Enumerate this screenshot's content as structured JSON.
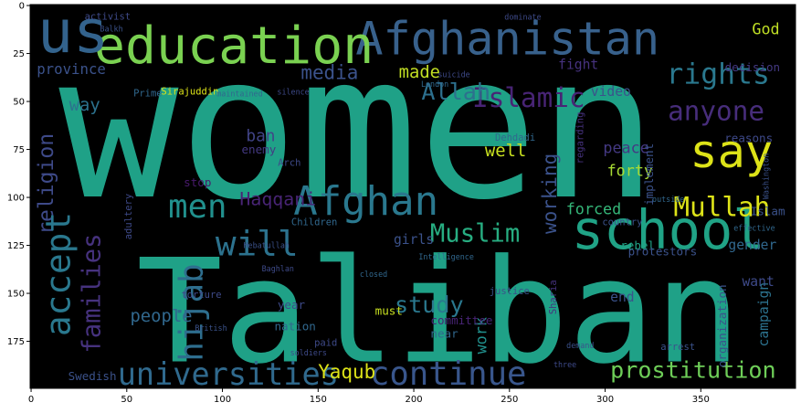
{
  "chart_data": {
    "type": "wordcloud",
    "background": "#000000",
    "xlim": [
      -0.5,
      399.5
    ],
    "ylim": [
      199.5,
      -0.5
    ],
    "xticks": [
      0,
      50,
      100,
      150,
      200,
      250,
      300,
      350
    ],
    "yticks": [
      0,
      25,
      50,
      75,
      100,
      125,
      150,
      175
    ],
    "words": [
      {
        "text": "women",
        "x": 171,
        "y": 64,
        "size": 104,
        "color": "#1fa187"
      },
      {
        "text": "Taliban",
        "x": 213,
        "y": 160,
        "size": 75,
        "color": "#1fa187"
      },
      {
        "text": "Afghanistan",
        "x": 249,
        "y": 17,
        "size": 24,
        "color": "#38618c"
      },
      {
        "text": "education",
        "x": 106,
        "y": 21,
        "size": 27,
        "color": "#7ad151"
      },
      {
        "text": "us",
        "x": 22,
        "y": 14,
        "size": 31,
        "color": "#33638d"
      },
      {
        "text": "rights",
        "x": 359,
        "y": 36,
        "size": 15,
        "color": "#2a788e"
      },
      {
        "text": "say",
        "x": 366,
        "y": 76,
        "size": 24,
        "color": "#dde318"
      },
      {
        "text": "school",
        "x": 333,
        "y": 117,
        "size": 28,
        "color": "#20a386"
      },
      {
        "text": "Islamic",
        "x": 260,
        "y": 48,
        "size": 14,
        "color": "#482475"
      },
      {
        "text": "anyone",
        "x": 358,
        "y": 55,
        "size": 14,
        "color": "#472d7b"
      },
      {
        "text": "Allah",
        "x": 222,
        "y": 45,
        "size": 12,
        "color": "#2d708e"
      },
      {
        "text": "made",
        "x": 203,
        "y": 35,
        "size": 9,
        "color": "#c2df23"
      },
      {
        "text": "media",
        "x": 156,
        "y": 35,
        "size": 10,
        "color": "#3b528b"
      },
      {
        "text": "God",
        "x": 384,
        "y": 12,
        "size": 8,
        "color": "#c0df25"
      },
      {
        "text": "way",
        "x": 28,
        "y": 52,
        "size": 9,
        "color": "#2c728e"
      },
      {
        "text": "province",
        "x": 21,
        "y": 33,
        "size": 7.5,
        "color": "#3b528b"
      },
      {
        "text": "religion",
        "x": 8,
        "y": 93,
        "size": 11,
        "color": "#3e4a89",
        "vertical": true
      },
      {
        "text": "accept",
        "x": 14,
        "y": 140,
        "size": 18,
        "color": "#2a788e",
        "vertical": true
      },
      {
        "text": "families",
        "x": 32,
        "y": 150,
        "size": 13,
        "color": "#46327e",
        "vertical": true
      },
      {
        "text": "men",
        "x": 87,
        "y": 105,
        "size": 17,
        "color": "#21908d"
      },
      {
        "text": "will",
        "x": 118,
        "y": 124,
        "size": 18,
        "color": "#2c728e"
      },
      {
        "text": "Afghan",
        "x": 175,
        "y": 102,
        "size": 21,
        "color": "#2a788e"
      },
      {
        "text": "Muslim",
        "x": 232,
        "y": 119,
        "size": 13,
        "color": "#27ad81"
      },
      {
        "text": "Mullah",
        "x": 361,
        "y": 105,
        "size": 14,
        "color": "#dde318"
      },
      {
        "text": "hijab",
        "x": 84,
        "y": 160,
        "size": 17,
        "color": "#2e6e8e",
        "vertical": true
      },
      {
        "text": "people",
        "x": 68,
        "y": 162,
        "size": 9,
        "color": "#31688e"
      },
      {
        "text": "universities",
        "x": 103,
        "y": 192,
        "size": 16,
        "color": "#306a8e"
      },
      {
        "text": "continue",
        "x": 218,
        "y": 192,
        "size": 17,
        "color": "#39568c"
      },
      {
        "text": "prostitution",
        "x": 346,
        "y": 190,
        "size": 12,
        "color": "#6ece58"
      },
      {
        "text": "Yaqub",
        "x": 165,
        "y": 191,
        "size": 10,
        "color": "#dde318"
      },
      {
        "text": "study",
        "x": 208,
        "y": 156,
        "size": 12,
        "color": "#2a788e"
      },
      {
        "text": "work",
        "x": 235,
        "y": 172,
        "size": 8,
        "color": "#21908d",
        "vertical": true
      },
      {
        "text": "working",
        "x": 271,
        "y": 98,
        "size": 10,
        "color": "#3b528b",
        "vertical": true
      },
      {
        "text": "well",
        "x": 248,
        "y": 76,
        "size": 9,
        "color": "#c8e020"
      },
      {
        "text": "forced",
        "x": 294,
        "y": 106,
        "size": 8,
        "color": "#35b779"
      },
      {
        "text": "forty",
        "x": 313,
        "y": 86,
        "size": 8,
        "color": "#a8db34"
      },
      {
        "text": "peace",
        "x": 311,
        "y": 74,
        "size": 8,
        "color": "#443983"
      },
      {
        "text": "ban",
        "x": 120,
        "y": 68,
        "size": 8.5,
        "color": "#414487"
      },
      {
        "text": "Haqqani",
        "x": 129,
        "y": 101,
        "size": 9.5,
        "color": "#482475"
      },
      {
        "text": "Islam",
        "x": 385,
        "y": 107,
        "size": 6,
        "color": "#3b528b"
      },
      {
        "text": "gender",
        "x": 377,
        "y": 125,
        "size": 7,
        "color": "#31688e"
      },
      {
        "text": "rebel",
        "x": 317,
        "y": 125,
        "size": 6,
        "color": "#20a386"
      },
      {
        "text": "stop",
        "x": 87,
        "y": 92,
        "size": 6,
        "color": "#481a6c"
      },
      {
        "text": "fight",
        "x": 286,
        "y": 31,
        "size": 7,
        "color": "#46327e"
      },
      {
        "text": "video",
        "x": 303,
        "y": 45,
        "size": 7,
        "color": "#3b528b"
      },
      {
        "text": "decision",
        "x": 377,
        "y": 32,
        "size": 6,
        "color": "#443983"
      },
      {
        "text": "Sirajuddin",
        "x": 83,
        "y": 45,
        "size": 5,
        "color": "#dde318"
      },
      {
        "text": "Prime",
        "x": 61,
        "y": 46,
        "size": 5,
        "color": "#31688e"
      },
      {
        "text": "end",
        "x": 309,
        "y": 152,
        "size": 7,
        "color": "#3b528b"
      },
      {
        "text": "committee",
        "x": 225,
        "y": 164,
        "size": 6,
        "color": "#482475"
      },
      {
        "text": "want",
        "x": 380,
        "y": 144,
        "size": 7,
        "color": "#3e4a89"
      },
      {
        "text": "Swedish",
        "x": 32,
        "y": 193,
        "size": 6,
        "color": "#3b528b"
      },
      {
        "text": "nation",
        "x": 138,
        "y": 167,
        "size": 6,
        "color": "#31688e"
      },
      {
        "text": "must",
        "x": 187,
        "y": 159,
        "size": 6,
        "color": "#c8e020"
      },
      {
        "text": "year",
        "x": 136,
        "y": 156,
        "size": 6,
        "color": "#3e4a89"
      },
      {
        "text": "campaign",
        "x": 383,
        "y": 161,
        "size": 7,
        "color": "#2c728e",
        "vertical": true
      },
      {
        "text": "organization",
        "x": 361,
        "y": 167,
        "size": 6,
        "color": "#3b528b",
        "vertical": true
      },
      {
        "text": "implement",
        "x": 323,
        "y": 88,
        "size": 6,
        "color": "#3b528b",
        "vertical": true
      },
      {
        "text": "reasons",
        "x": 375,
        "y": 69,
        "size": 6,
        "color": "#3e4989"
      },
      {
        "text": "enemy",
        "x": 119,
        "y": 75,
        "size": 6,
        "color": "#443983"
      },
      {
        "text": "girls",
        "x": 200,
        "y": 122,
        "size": 7,
        "color": "#3b528b"
      },
      {
        "text": "activist",
        "x": 40,
        "y": 6,
        "size": 5,
        "color": "#3e4a89"
      },
      {
        "text": "London",
        "x": 211,
        "y": 41,
        "size": 4,
        "color": "#31688e"
      },
      {
        "text": "Children",
        "x": 148,
        "y": 113,
        "size": 5,
        "color": "#31688e"
      },
      {
        "text": "protestors",
        "x": 330,
        "y": 128,
        "size": 6,
        "color": "#3b528b"
      },
      {
        "text": "Arch",
        "x": 135,
        "y": 82,
        "size": 5,
        "color": "#3e4a89"
      },
      {
        "text": "Dehdadi",
        "x": 253,
        "y": 69,
        "size": 5,
        "color": "#31688e"
      },
      {
        "text": "Hebatullah",
        "x": 123,
        "y": 125,
        "size": 4,
        "color": "#3b528b"
      },
      {
        "text": "Intelligence",
        "x": 217,
        "y": 131,
        "size": 4,
        "color": "#31688e"
      },
      {
        "text": "British",
        "x": 94,
        "y": 168,
        "size": 4,
        "color": "#3b528b"
      },
      {
        "text": "soldiers",
        "x": 145,
        "y": 181,
        "size": 4,
        "color": "#3e4a89"
      },
      {
        "text": "near",
        "x": 216,
        "y": 171,
        "size": 6,
        "color": "#31688e"
      },
      {
        "text": "paid",
        "x": 154,
        "y": 176,
        "size": 5,
        "color": "#3e4a89"
      },
      {
        "text": "justice",
        "x": 250,
        "y": 149,
        "size": 5,
        "color": "#3b528b"
      },
      {
        "text": "torture",
        "x": 89,
        "y": 151,
        "size": 5,
        "color": "#3e4a89"
      },
      {
        "text": "Sharia",
        "x": 273,
        "y": 152,
        "size": 5,
        "color": "#46327e",
        "vertical": true
      },
      {
        "text": "arrest",
        "x": 338,
        "y": 178,
        "size": 5,
        "color": "#3b528b"
      },
      {
        "text": "effective",
        "x": 378,
        "y": 116,
        "size": 4,
        "color": "#31688e"
      },
      {
        "text": "adultery",
        "x": 51,
        "y": 110,
        "size": 5,
        "color": "#3e4a89",
        "vertical": true
      },
      {
        "text": "Balkh",
        "x": 42,
        "y": 12,
        "size": 4,
        "color": "#3b528b"
      },
      {
        "text": "Washington",
        "x": 384,
        "y": 89,
        "size": 4,
        "color": "#3b528b",
        "vertical": true
      },
      {
        "text": "regarding",
        "x": 287,
        "y": 69,
        "size": 5,
        "color": "#46327e",
        "vertical": true
      },
      {
        "text": "dominate",
        "x": 257,
        "y": 6,
        "size": 4,
        "color": "#3e4a89"
      },
      {
        "text": "silence",
        "x": 137,
        "y": 45,
        "size": 4,
        "color": "#3e4a89"
      },
      {
        "text": "maintained",
        "x": 109,
        "y": 46,
        "size": 4,
        "color": "#31688e"
      },
      {
        "text": "suicide",
        "x": 221,
        "y": 36,
        "size": 4,
        "color": "#3e4a89"
      },
      {
        "text": "closed",
        "x": 179,
        "y": 140,
        "size": 4,
        "color": "#31688e"
      },
      {
        "text": "demand",
        "x": 287,
        "y": 177,
        "size": 4,
        "color": "#3b528b"
      },
      {
        "text": "Baghlan",
        "x": 129,
        "y": 137,
        "size": 4,
        "color": "#3e4a89"
      },
      {
        "text": "outside",
        "x": 333,
        "y": 101,
        "size": 4,
        "color": "#31688e"
      },
      {
        "text": "country",
        "x": 309,
        "y": 113,
        "size": 5,
        "color": "#3b528b"
      },
      {
        "text": "three",
        "x": 279,
        "y": 187,
        "size": 4,
        "color": "#3e4a89"
      }
    ]
  }
}
